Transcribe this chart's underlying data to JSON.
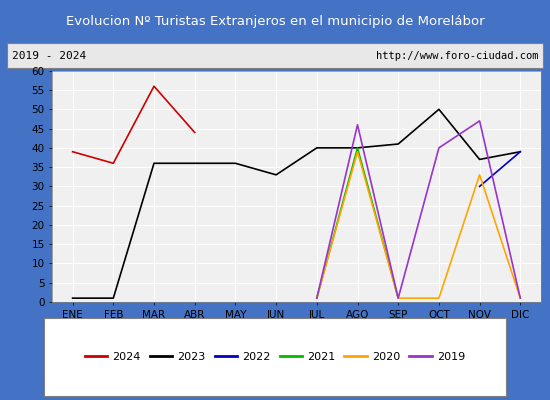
{
  "title": "Evolucion Nº Turistas Extranjeros en el municipio de Morelábor",
  "subtitle_left": "2019 - 2024",
  "subtitle_right": "http://www.foro-ciudad.com",
  "title_bg": "#4472c4",
  "subtitle_bg": "#e8e8e8",
  "plot_bg": "#f0f0f0",
  "months": [
    "ENE",
    "FEB",
    "MAR",
    "ABR",
    "MAY",
    "JUN",
    "JUL",
    "AGO",
    "SEP",
    "OCT",
    "NOV",
    "DIC"
  ],
  "ylim": [
    0,
    60
  ],
  "yticks": [
    0,
    5,
    10,
    15,
    20,
    25,
    30,
    35,
    40,
    45,
    50,
    55,
    60
  ],
  "series_2024": {
    "color": "#cc0000",
    "x": [
      0,
      1,
      2,
      3
    ],
    "y": [
      39,
      36,
      56,
      44
    ]
  },
  "series_2023": {
    "color": "#000000",
    "x": [
      0,
      1,
      2,
      3,
      4,
      5,
      6,
      7,
      8,
      9,
      10,
      11
    ],
    "y": [
      1,
      1,
      36,
      36,
      36,
      33,
      40,
      40,
      41,
      50,
      37,
      39
    ]
  },
  "series_2022": {
    "color": "#0000cc",
    "x": [
      10,
      11
    ],
    "y": [
      30,
      39
    ]
  },
  "series_2021": {
    "color": "#00bb00",
    "x": [
      6,
      7,
      8
    ],
    "y": [
      1,
      40,
      1
    ]
  },
  "series_2020": {
    "color": "#ffa500",
    "x": [
      6,
      7,
      8,
      9,
      10,
      11
    ],
    "y": [
      1,
      39,
      1,
      1,
      33,
      1
    ]
  },
  "series_2019": {
    "color": "#9933cc",
    "x": [
      6,
      7,
      8,
      9,
      10,
      11
    ],
    "y": [
      1,
      46,
      1,
      40,
      47,
      1
    ]
  },
  "legend_order": [
    "2024",
    "2023",
    "2022",
    "2021",
    "2020",
    "2019"
  ]
}
